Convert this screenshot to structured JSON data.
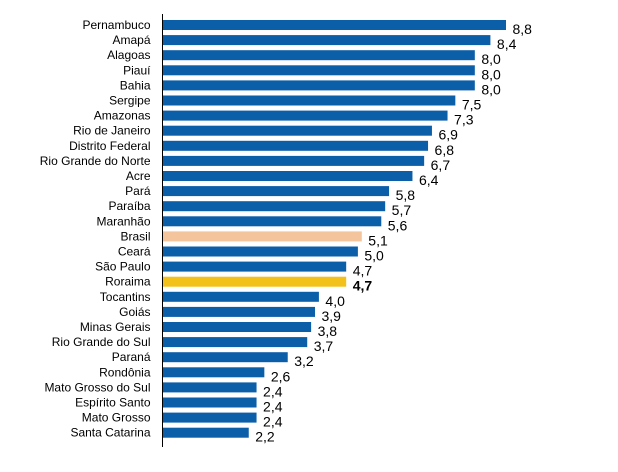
{
  "chart_data": {
    "type": "bar",
    "orientation": "horizontal",
    "categories": [
      "Pernambuco",
      "Amapá",
      "Alagoas",
      "Piauí",
      "Bahia",
      "Sergipe",
      "Amazonas",
      "Rio de Janeiro",
      "Distrito Federal",
      "Rio Grande do Norte",
      "Acre",
      "Pará",
      "Paraíba",
      "Maranhão",
      "Brasil",
      "Ceará",
      "São Paulo",
      "Roraima",
      "Tocantins",
      "Goiás",
      "Minas Gerais",
      "Rio Grande do Sul",
      "Paraná",
      "Rondônia",
      "Mato Grosso do Sul",
      "Espírito Santo",
      "Mato Grosso",
      "Santa Catarina"
    ],
    "values": [
      8.8,
      8.4,
      8.0,
      8.0,
      8.0,
      7.5,
      7.3,
      6.9,
      6.8,
      6.7,
      6.4,
      5.8,
      5.7,
      5.6,
      5.1,
      5.0,
      4.7,
      4.7,
      4.0,
      3.9,
      3.8,
      3.7,
      3.2,
      2.6,
      2.4,
      2.4,
      2.4,
      2.2
    ],
    "value_labels": [
      "8,8",
      "8,4",
      "8,0",
      "8,0",
      "8,0",
      "7,5",
      "7,3",
      "6,9",
      "6,8",
      "6,7",
      "6,4",
      "5,8",
      "5,7",
      "5,6",
      "5,1",
      "5,0",
      "4,7",
      "4,7",
      "4,0",
      "3,9",
      "3,8",
      "3,7",
      "3,2",
      "2,6",
      "2,4",
      "2,4",
      "2,4",
      "2,2"
    ],
    "xlim": [
      0,
      8.8
    ],
    "grid": false,
    "legend": "none",
    "colors": {
      "default": "#0b5ea8",
      "highlight_brasil": "#f4c49c",
      "highlight_roraima": "#f3c21a",
      "axis": "#000000",
      "text": "#000000"
    },
    "highlight": {
      "Brasil": "highlight_brasil",
      "Roraima": "highlight_roraima"
    },
    "bold_labels": [
      "Roraima"
    ]
  }
}
